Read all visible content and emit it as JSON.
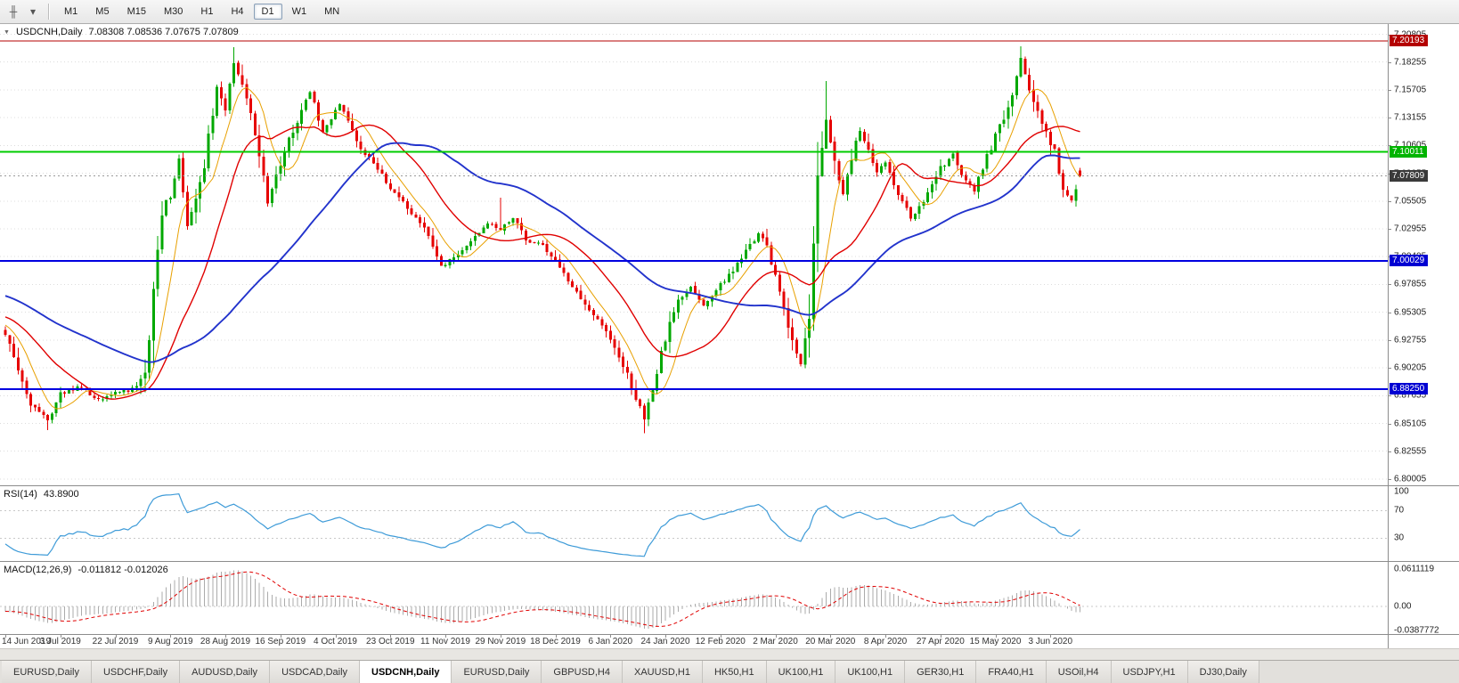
{
  "toolbar": {
    "timeframes": [
      "M1",
      "M5",
      "M15",
      "M30",
      "H1",
      "H4",
      "D1",
      "W1",
      "MN"
    ],
    "active_timeframe": "D1"
  },
  "icons": {
    "collapse": "▼",
    "toolbar_candle": "╫",
    "toolbar_cursor": "▾"
  },
  "main_title": {
    "symbol": "USDCNH,Daily",
    "ohlc": "7.08308 7.08536 7.07675 7.07809"
  },
  "rsi_title": {
    "name": "RSI(14)",
    "value": "43.8900"
  },
  "macd_title": {
    "name": "MACD(12,26,9)",
    "values": "-0.011812 -0.012026"
  },
  "tabs": {
    "items": [
      "EURUSD,Daily",
      "USDCHF,Daily",
      "AUDUSD,Daily",
      "USDCAD,Daily",
      "USDCNH,Daily",
      "EURUSD,Daily",
      "GBPUSD,H4",
      "XAUUSD,H1",
      "HK50,H1",
      "UK100,H1",
      "UK100,H1",
      "GER30,H1",
      "FRA40,H1",
      "USOil,H4",
      "USDJPY,H1",
      "DJ30,Daily"
    ],
    "active_index": 4
  },
  "chart_data": {
    "type": "candlestick",
    "instrument": "USDCNH",
    "timeframe": "Daily",
    "last_ohlc": {
      "open": 7.08308,
      "high": 7.08536,
      "low": 7.07675,
      "close": 7.07809
    },
    "colors": {
      "up": "#00A800",
      "down": "#E60000",
      "grid": "#dcdcdc"
    },
    "y_axis": {
      "ticks": [
        "7.20805",
        "7.18255",
        "7.15705",
        "7.13155",
        "7.10605",
        "7.08055",
        "7.05505",
        "7.02955",
        "7.00405",
        "6.97855",
        "6.95305",
        "6.92755",
        "6.90205",
        "6.87655",
        "6.85105",
        "6.82555",
        "6.80005"
      ]
    },
    "x_axis": {
      "labels": [
        "14 Jun 2019",
        "3 Jul 2019",
        "22 Jul 2019",
        "9 Aug 2019",
        "28 Aug 2019",
        "16 Sep 2019",
        "4 Oct 2019",
        "23 Oct 2019",
        "11 Nov 2019",
        "29 Nov 2019",
        "18 Dec 2019",
        "6 Jan 2020",
        "24 Jan 2020",
        "12 Feb 2020",
        "2 Mar 2020",
        "20 Mar 2020",
        "8 Apr 2020",
        "27 Apr 2020",
        "15 May 2020",
        "3 Jun 2020"
      ],
      "candles_per_label": 13,
      "total_candles": 255
    },
    "horizontal_lines": [
      {
        "price": 7.20193,
        "color": "#B40000",
        "width": 1
      },
      {
        "price": 7.10011,
        "color": "#00CC00",
        "width": 2
      },
      {
        "price": 7.00029,
        "color": "#0000E0",
        "width": 2
      },
      {
        "price": 6.8825,
        "color": "#0000E0",
        "width": 2
      }
    ],
    "price_badges": [
      {
        "text": "7.20193",
        "price": 7.20193,
        "bg": "#B40000",
        "fg": "#FFFFFF"
      },
      {
        "text": "7.10011",
        "price": 7.10011,
        "bg": "#00B400",
        "fg": "#FFFFFF"
      },
      {
        "text": "7.07809",
        "price": 7.07809,
        "bg": "#3A3A3A",
        "fg": "#FFFFFF"
      },
      {
        "text": "7.00029",
        "price": 7.00029,
        "bg": "#0000D2",
        "fg": "#FFFFFF"
      },
      {
        "text": "6.88250",
        "price": 6.8825,
        "bg": "#0000D2",
        "fg": "#FFFFFF"
      }
    ],
    "moving_averages": [
      {
        "name": "fast-ma",
        "period": 8,
        "color": "#E8A000",
        "width": 1
      },
      {
        "name": "medium-ma",
        "period": 21,
        "color": "#E00000",
        "width": 1.4
      },
      {
        "name": "slow-ma",
        "period": 55,
        "color": "#2233CC",
        "width": 1.9
      }
    ],
    "price_path": [
      [
        0,
        6.935
      ],
      [
        3,
        6.9
      ],
      [
        6,
        6.87
      ],
      [
        10,
        6.853
      ],
      [
        13,
        6.878
      ],
      [
        18,
        6.885
      ],
      [
        22,
        6.872
      ],
      [
        26,
        6.88
      ],
      [
        30,
        6.882
      ],
      [
        33,
        6.892
      ],
      [
        35,
        6.975
      ],
      [
        37,
        7.045
      ],
      [
        39,
        7.06
      ],
      [
        41,
        7.095
      ],
      [
        43,
        7.03
      ],
      [
        45,
        7.06
      ],
      [
        47,
        7.09
      ],
      [
        50,
        7.16
      ],
      [
        52,
        7.14
      ],
      [
        54,
        7.183
      ],
      [
        57,
        7.15
      ],
      [
        60,
        7.1
      ],
      [
        62,
        7.055
      ],
      [
        65,
        7.09
      ],
      [
        68,
        7.12
      ],
      [
        72,
        7.155
      ],
      [
        75,
        7.12
      ],
      [
        79,
        7.145
      ],
      [
        83,
        7.11
      ],
      [
        87,
        7.09
      ],
      [
        91,
        7.068
      ],
      [
        95,
        7.05
      ],
      [
        99,
        7.03
      ],
      [
        103,
        6.995
      ],
      [
        107,
        7.005
      ],
      [
        110,
        7.02
      ],
      [
        114,
        7.035
      ],
      [
        117,
        7.028
      ],
      [
        120,
        7.04
      ],
      [
        123,
        7.02
      ],
      [
        127,
        7.015
      ],
      [
        130,
        7.0
      ],
      [
        134,
        6.975
      ],
      [
        137,
        6.96
      ],
      [
        140,
        6.945
      ],
      [
        143,
        6.93
      ],
      [
        146,
        6.905
      ],
      [
        149,
        6.875
      ],
      [
        151,
        6.855
      ],
      [
        153,
        6.88
      ],
      [
        156,
        6.93
      ],
      [
        159,
        6.965
      ],
      [
        162,
        6.975
      ],
      [
        165,
        6.96
      ],
      [
        169,
        6.98
      ],
      [
        172,
        6.99
      ],
      [
        175,
        7.01
      ],
      [
        178,
        7.025
      ],
      [
        180,
        7.015
      ],
      [
        183,
        6.97
      ],
      [
        186,
        6.925
      ],
      [
        188,
        6.905
      ],
      [
        190,
        6.95
      ],
      [
        192,
        7.08
      ],
      [
        194,
        7.13
      ],
      [
        196,
        7.09
      ],
      [
        198,
        7.06
      ],
      [
        200,
        7.095
      ],
      [
        202,
        7.12
      ],
      [
        204,
        7.1
      ],
      [
        206,
        7.08
      ],
      [
        208,
        7.09
      ],
      [
        211,
        7.06
      ],
      [
        214,
        7.04
      ],
      [
        217,
        7.055
      ],
      [
        221,
        7.085
      ],
      [
        224,
        7.1
      ],
      [
        226,
        7.08
      ],
      [
        229,
        7.065
      ],
      [
        232,
        7.095
      ],
      [
        234,
        7.115
      ],
      [
        237,
        7.14
      ],
      [
        240,
        7.185
      ],
      [
        242,
        7.16
      ],
      [
        244,
        7.135
      ],
      [
        246,
        7.12
      ],
      [
        248,
        7.1
      ],
      [
        250,
        7.065
      ],
      [
        252,
        7.055
      ],
      [
        254,
        7.078
      ]
    ],
    "extremes": [
      {
        "i": 10,
        "low": 6.845
      },
      {
        "i": 54,
        "high": 7.196
      },
      {
        "i": 117,
        "high": 7.058
      },
      {
        "i": 151,
        "low": 6.842
      },
      {
        "i": 194,
        "high": 7.165
      },
      {
        "i": 240,
        "high": 7.197
      }
    ],
    "synthesis": {
      "seed": 12,
      "pre_roll": [
        7.005,
        6.94
      ],
      "pre_candles": 60
    },
    "indicators": {
      "rsi": {
        "label": "RSI(14)",
        "period": 14,
        "value": 43.89,
        "levels": [
          70,
          30
        ],
        "scale_labels": [
          {
            "text": "100",
            "value": 100
          },
          {
            "text": "70",
            "value": 70
          },
          {
            "text": "30",
            "value": 30
          }
        ],
        "color": "#3E9BD8"
      },
      "macd": {
        "label": "MACD(12,26,9)",
        "fast": 12,
        "slow": 26,
        "signal": 9,
        "value": -0.011812,
        "signal_value": -0.012026,
        "range_min": -0.0387772,
        "range_max": 0.0611119,
        "scale_labels": [
          {
            "text": "0.0611119",
            "value": 0.0611119
          },
          {
            "text": "0.00",
            "value": 0
          },
          {
            "text": "-0.0387772",
            "value": -0.0387772
          }
        ],
        "histogram_color": "#ABABAB",
        "signal_color": "#E00000"
      }
    }
  }
}
